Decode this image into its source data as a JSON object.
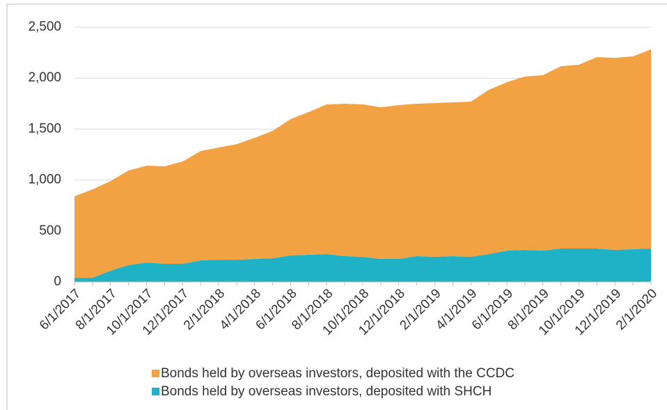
{
  "chart_data": {
    "type": "stacked_area",
    "categories": [
      "6/1/2017",
      null,
      "8/1/2017",
      null,
      "10/1/2017",
      null,
      "12/1/2017",
      null,
      "2/1/2018",
      null,
      "4/1/2018",
      null,
      "6/1/2018",
      null,
      "8/1/2018",
      null,
      "10/1/2018",
      null,
      "12/1/2018",
      null,
      "2/1/2019",
      null,
      "4/1/2019",
      null,
      "6/1/2019",
      null,
      "8/1/2019",
      null,
      "10/1/2019",
      null,
      "12/1/2019",
      null,
      "2/1/2020"
    ],
    "series": [
      {
        "name": "Bonds held by overseas investors, deposited with the CCDC",
        "color": "#f2a143",
        "values": [
          800,
          868,
          880,
          928,
          951,
          956,
          1004,
          1072,
          1100,
          1134,
          1189,
          1250,
          1338,
          1401,
          1469,
          1496,
          1496,
          1489,
          1510,
          1496,
          1509,
          1509,
          1523,
          1612,
          1653,
          1701,
          1722,
          1789,
          1803,
          1878,
          1885,
          1892,
          1953
        ]
      },
      {
        "name": "Bonds held by overseas investors, deposited with SHCH",
        "color": "#1fb2c6",
        "values": [
          40,
          40,
          110,
          165,
          190,
          178,
          178,
          212,
          218,
          218,
          225,
          232,
          260,
          266,
          273,
          253,
          246,
          225,
          225,
          253,
          246,
          253,
          246,
          273,
          307,
          314,
          307,
          328,
          328,
          328,
          314,
          321,
          328
        ]
      }
    ],
    "ylim": [
      0,
      2500
    ],
    "yticks": [
      0,
      500,
      {
        "value": 1000,
        "label": "1,000"
      },
      {
        "value": 1500,
        "label": "1,500"
      },
      {
        "value": 2000,
        "label": "2,000"
      },
      {
        "value": 2500,
        "label": "2,500"
      }
    ],
    "grid": true
  }
}
